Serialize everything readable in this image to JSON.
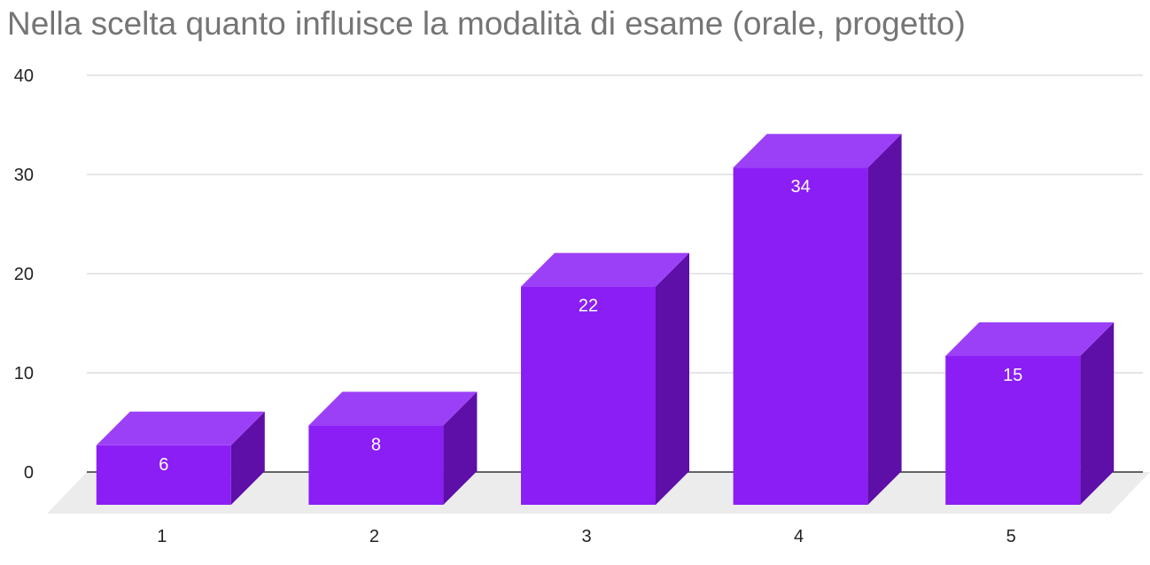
{
  "chart_data": {
    "type": "bar",
    "title": "Nella scelta quanto influisce la modalità di esame (orale, progetto)",
    "categories": [
      "1",
      "2",
      "3",
      "4",
      "5"
    ],
    "values": [
      6,
      8,
      22,
      34,
      15
    ],
    "ylim": [
      0,
      40
    ],
    "yticks": [
      "0",
      "10",
      "20",
      "30",
      "40"
    ],
    "grid": true,
    "legend": "none",
    "style": "3d",
    "colors": {
      "front": "#8b1ef5",
      "top": "#9c40f7",
      "side": "#5d0fa8",
      "floor": "#ececec",
      "grid": "#cccccc",
      "baseline": "#333333"
    }
  }
}
